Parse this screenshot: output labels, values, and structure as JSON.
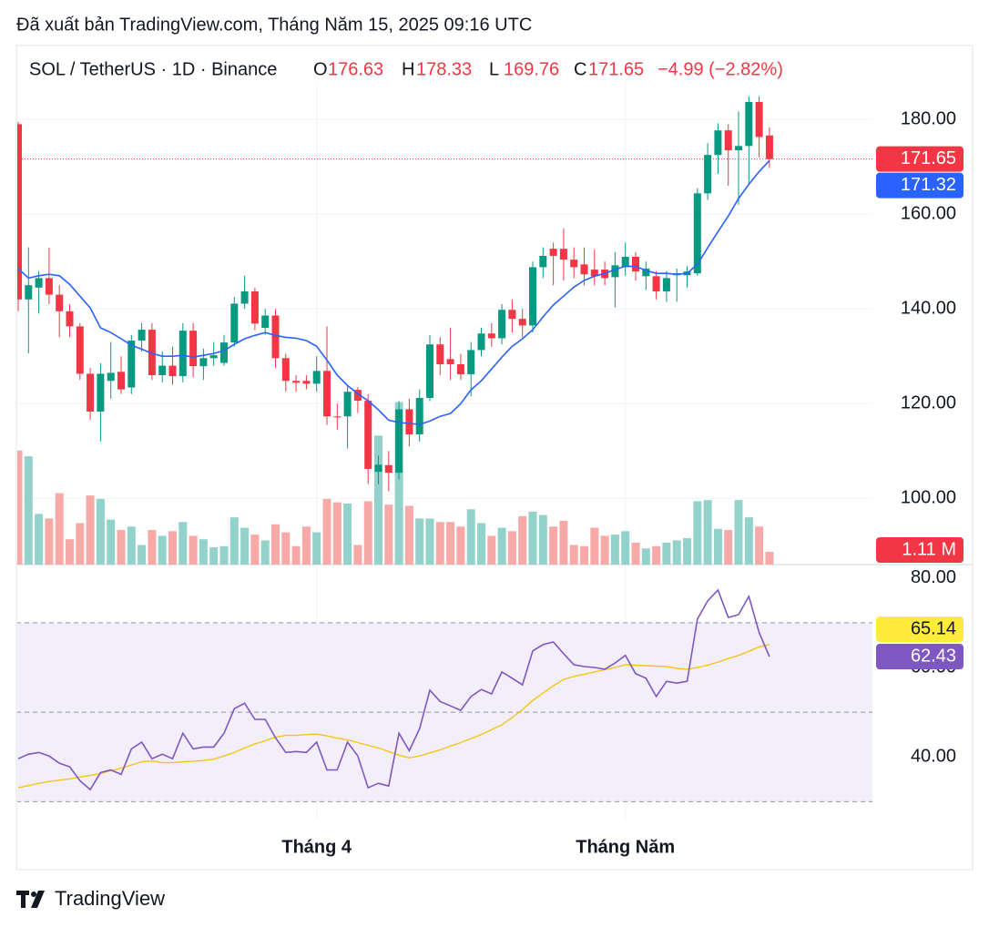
{
  "header": {
    "published": "Đã xuất bản TradingView.com, Tháng Năm 15, 2025 09:16 UTC"
  },
  "footer": {
    "brand": "TradingView"
  },
  "chart_data": {
    "type": "candlestick",
    "title": "SOL / TetherUS · 1D · Binance",
    "legend_keys": [
      "O",
      "H",
      "L",
      "C"
    ],
    "change_label": "−4.99 (−2.82%)",
    "up_color": "#089981",
    "down_color": "#f23645",
    "volume_up_color": "#92d2cb",
    "volume_down_color": "#f7a9a7",
    "categories": [
      null,
      null,
      null,
      null,
      null,
      null,
      null,
      null,
      null,
      null,
      null,
      null,
      null,
      null,
      null,
      null,
      null,
      null,
      null,
      null,
      null,
      null,
      null,
      null,
      null,
      null,
      null,
      null,
      null,
      "Tháng 4",
      null,
      null,
      null,
      null,
      null,
      null,
      null,
      null,
      null,
      null,
      null,
      null,
      null,
      null,
      null,
      null,
      null,
      null,
      null,
      null,
      null,
      null,
      null,
      null,
      null,
      null,
      null,
      null,
      null,
      "Tháng Năm",
      null,
      null,
      null,
      null,
      null,
      null,
      null,
      null,
      null,
      null,
      null,
      null,
      null,
      null
    ],
    "open": [
      179,
      142,
      144.5,
      146.5,
      143,
      139.5,
      136.3,
      126.3,
      118.3,
      124.8,
      126.7,
      123.4,
      133.3,
      135.6,
      126,
      128,
      125.8,
      135.4,
      127.9,
      129.6,
      128.6,
      132.9,
      141.1,
      143.7,
      136,
      138.6,
      129.6,
      124.8,
      124.8,
      124.2,
      126.9,
      117.3,
      117.3,
      122.9,
      120.6,
      105.6,
      107,
      105.4,
      118.8,
      113.5,
      121.2,
      132.5,
      129.4,
      128.3,
      126.2,
      131.3,
      134.8,
      133.8,
      139.8,
      137.9,
      136.5,
      148.8,
      152.7,
      152.7,
      150.4,
      149.4,
      148.3,
      148.3,
      146.7,
      148.8,
      151,
      146.9,
      146.9,
      143.7,
      147.1,
      147.1,
      147.5,
      164.4,
      172.5,
      177.7,
      173.5,
      174.4,
      183.7,
      176.63
    ],
    "high": [
      179.5,
      153,
      148,
      152.9,
      145,
      141,
      137,
      127.5,
      128.5,
      133,
      130,
      134.5,
      137,
      137,
      131,
      132,
      137,
      137,
      131.6,
      133,
      134.5,
      142.5,
      147,
      144.5,
      140,
      140,
      130.5,
      126,
      126,
      130,
      136.3,
      120,
      124,
      123.5,
      122,
      109,
      110,
      120.5,
      121,
      123,
      134.5,
      134,
      136,
      130.5,
      133,
      136,
      137,
      141,
      142,
      140,
      150,
      153,
      154,
      157,
      153,
      153,
      152.6,
      150,
      152,
      154,
      152,
      150,
      148,
      148,
      148.5,
      149,
      165.5,
      175,
      179.2,
      179,
      181.7,
      184.9,
      184.9,
      178.33
    ],
    "low": [
      139.5,
      130.6,
      139,
      141,
      134,
      134,
      125,
      116.5,
      112,
      121,
      122,
      122,
      131,
      125,
      124.5,
      124,
      124.5,
      125.5,
      125,
      128,
      128,
      132,
      140,
      135.5,
      134.5,
      127.5,
      122.5,
      122.5,
      123,
      122.5,
      115.5,
      114.5,
      110.5,
      118,
      103,
      103,
      101.5,
      104,
      111,
      112,
      120.5,
      126,
      125,
      125,
      121.5,
      130,
      132,
      132.5,
      135,
      134,
      135,
      146.5,
      145,
      146,
      146.5,
      145,
      145,
      145,
      140.3,
      147,
      146,
      144,
      142,
      141.5,
      141.5,
      144.5,
      147,
      163,
      168.5,
      166,
      162,
      166.2,
      172,
      169.76
    ],
    "close": [
      142,
      145,
      146.5,
      143,
      139.5,
      136.3,
      126.3,
      118.3,
      126.3,
      126.5,
      123,
      133.3,
      135.6,
      126,
      128,
      125.8,
      135.4,
      127.9,
      129.6,
      130.2,
      132.9,
      141.1,
      143.7,
      136.9,
      138.6,
      129.6,
      124.8,
      124.4,
      124.2,
      126.9,
      117.3,
      117.1,
      122.5,
      120.6,
      106.2,
      107.1,
      105.4,
      118.8,
      113.5,
      121.2,
      132.5,
      128.3,
      128.3,
      126.2,
      131.3,
      134.8,
      133.8,
      139.8,
      137.9,
      136.5,
      148.8,
      151.2,
      151.2,
      150.4,
      148.8,
      147.3,
      146.9,
      146.5,
      149.2,
      151,
      147.9,
      148.5,
      143.7,
      146.5,
      147.5,
      147.9,
      164.4,
      172.5,
      177.7,
      173.5,
      174.4,
      183.7,
      176.3,
      171.65
    ],
    "ylim": [
      86,
      186
    ],
    "yticks": [
      {
        "value": 100,
        "label": "100.00"
      },
      {
        "value": 120,
        "label": "120.00"
      },
      {
        "value": 140,
        "label": "140.00"
      },
      {
        "value": 160,
        "label": "160.00"
      },
      {
        "value": 180,
        "label": "180.00"
      }
    ],
    "grid": true,
    "ma": {
      "color": "#2962ff",
      "values": [
        148.5,
        146.5,
        147,
        147.3,
        147,
        145.2,
        142.7,
        140.2,
        136,
        135,
        133.7,
        132.3,
        131.5,
        130.6,
        130,
        130,
        130.2,
        129.8,
        130.2,
        130.6,
        131.2,
        132.5,
        133.7,
        134.4,
        135,
        134.4,
        134,
        133.8,
        133.3,
        132.1,
        129.2,
        126,
        123.8,
        122.1,
        120.6,
        118.7,
        116.5,
        116,
        115.8,
        115.6,
        116.3,
        117.3,
        117.9,
        120,
        122.9,
        124.8,
        127.3,
        129.8,
        132.1,
        133.7,
        135.6,
        138.3,
        140.8,
        142.7,
        144.6,
        146,
        146.9,
        147.5,
        148.3,
        149,
        149,
        148.1,
        147.5,
        147.5,
        147.3,
        147.5,
        149.4,
        152.9,
        156.3,
        159.6,
        163.3,
        166.3,
        169,
        171.32
      ]
    },
    "volume": {
      "values": [
        9.9,
        9.4,
        4.4,
        4.0,
        6.2,
        2.2,
        3.6,
        6.0,
        5.7,
        3.9,
        3.0,
        3.3,
        1.7,
        3.0,
        2.5,
        2.9,
        3.7,
        2.5,
        2.2,
        1.5,
        1.6,
        4.1,
        3.2,
        2.6,
        2.1,
        3.5,
        2.8,
        1.6,
        3.3,
        2.8,
        5.7,
        5.4,
        5.3,
        1.7,
        5.5,
        11.2,
        5.2,
        14.1,
        5.1,
        4.0,
        4.0,
        3.7,
        3.7,
        3.3,
        4.8,
        3.6,
        2.5,
        3.2,
        2.9,
        4.2,
        4.6,
        4.3,
        3.3,
        3.8,
        1.7,
        1.6,
        3.2,
        2.5,
        2.6,
        2.9,
        1.9,
        1.4,
        1.6,
        1.9,
        2.1,
        2.3,
        5.5,
        5.6,
        3.1,
        3.0,
        5.6,
        4.1,
        3.3,
        1.11
      ],
      "value_labels": [
        null,
        null,
        null,
        null,
        null,
        null,
        null,
        null,
        null,
        null,
        null,
        null,
        null,
        null,
        null,
        null,
        null,
        null,
        null,
        null,
        null,
        null,
        null,
        null,
        null,
        null,
        null,
        null,
        null,
        null,
        null,
        null,
        null,
        null,
        null,
        null,
        null,
        null,
        null,
        null,
        null,
        null,
        null,
        null,
        null,
        null,
        null,
        null,
        null,
        null,
        null,
        null,
        null,
        null,
        null,
        null,
        null,
        null,
        null,
        null,
        null,
        null,
        null,
        null,
        null,
        null,
        null,
        null,
        null,
        null,
        null,
        null,
        null,
        "1.11 M"
      ],
      "ylim": [
        0,
        41.1
      ]
    },
    "rsi": {
      "color": "#7e57c2",
      "ma_color": "#f5c518",
      "label_color": "#ffeb3b",
      "values": [
        39.6,
        40.6,
        41.0,
        40.2,
        38.6,
        37.8,
        34.7,
        32.7,
        36.5,
        37.1,
        36.1,
        41.8,
        43.3,
        39.6,
        40.6,
        39.6,
        45.3,
        41.8,
        42.2,
        42.2,
        45.3,
        50.8,
        52.0,
        48.4,
        48.4,
        44.3,
        41.0,
        41.2,
        41.0,
        43.3,
        37.1,
        37.1,
        43.3,
        40.2,
        33.1,
        34.1,
        33.5,
        45.3,
        41.4,
        46.3,
        54.9,
        52.4,
        51.4,
        50.4,
        53.5,
        55.1,
        54.1,
        59.0,
        57.6,
        56.1,
        63.7,
        65.1,
        65.7,
        63.1,
        60.6,
        60.2,
        60.0,
        59.6,
        61.0,
        62.7,
        58.6,
        57.6,
        53.5,
        56.9,
        56.5,
        56.9,
        70.8,
        74.9,
        77.3,
        71.2,
        71.8,
        75.9,
        67.8,
        62.43
      ],
      "ma_values": [
        33.1,
        33.6,
        34.1,
        34.5,
        34.8,
        35.1,
        35.5,
        35.9,
        36.3,
        36.9,
        37.5,
        38.2,
        38.9,
        39.1,
        38.7,
        38.7,
        38.9,
        39.0,
        39.2,
        39.5,
        40.2,
        41.0,
        42.0,
        42.9,
        43.6,
        44.4,
        44.8,
        44.8,
        45.0,
        45.1,
        44.7,
        44.2,
        43.8,
        43.2,
        42.6,
        42.0,
        41.2,
        40.4,
        39.8,
        40.2,
        40.9,
        41.6,
        42.4,
        43.2,
        44.1,
        45.0,
        46.1,
        47.2,
        48.8,
        50.6,
        52.6,
        54.3,
        55.9,
        57.3,
        58.0,
        58.5,
        59.0,
        59.5,
        60.0,
        60.6,
        60.5,
        60.4,
        60.3,
        60.2,
        59.8,
        59.6,
        60.0,
        60.5,
        61.2,
        62.0,
        62.7,
        63.6,
        64.6,
        65.14
      ],
      "ylim": [
        26,
        83
      ],
      "yticks": [
        {
          "value": 40,
          "label": "40.00"
        },
        {
          "value": 60,
          "label": "60.00"
        },
        {
          "value": 80,
          "label": "80.00"
        }
      ],
      "bands": [
        30,
        50,
        70
      ]
    }
  }
}
